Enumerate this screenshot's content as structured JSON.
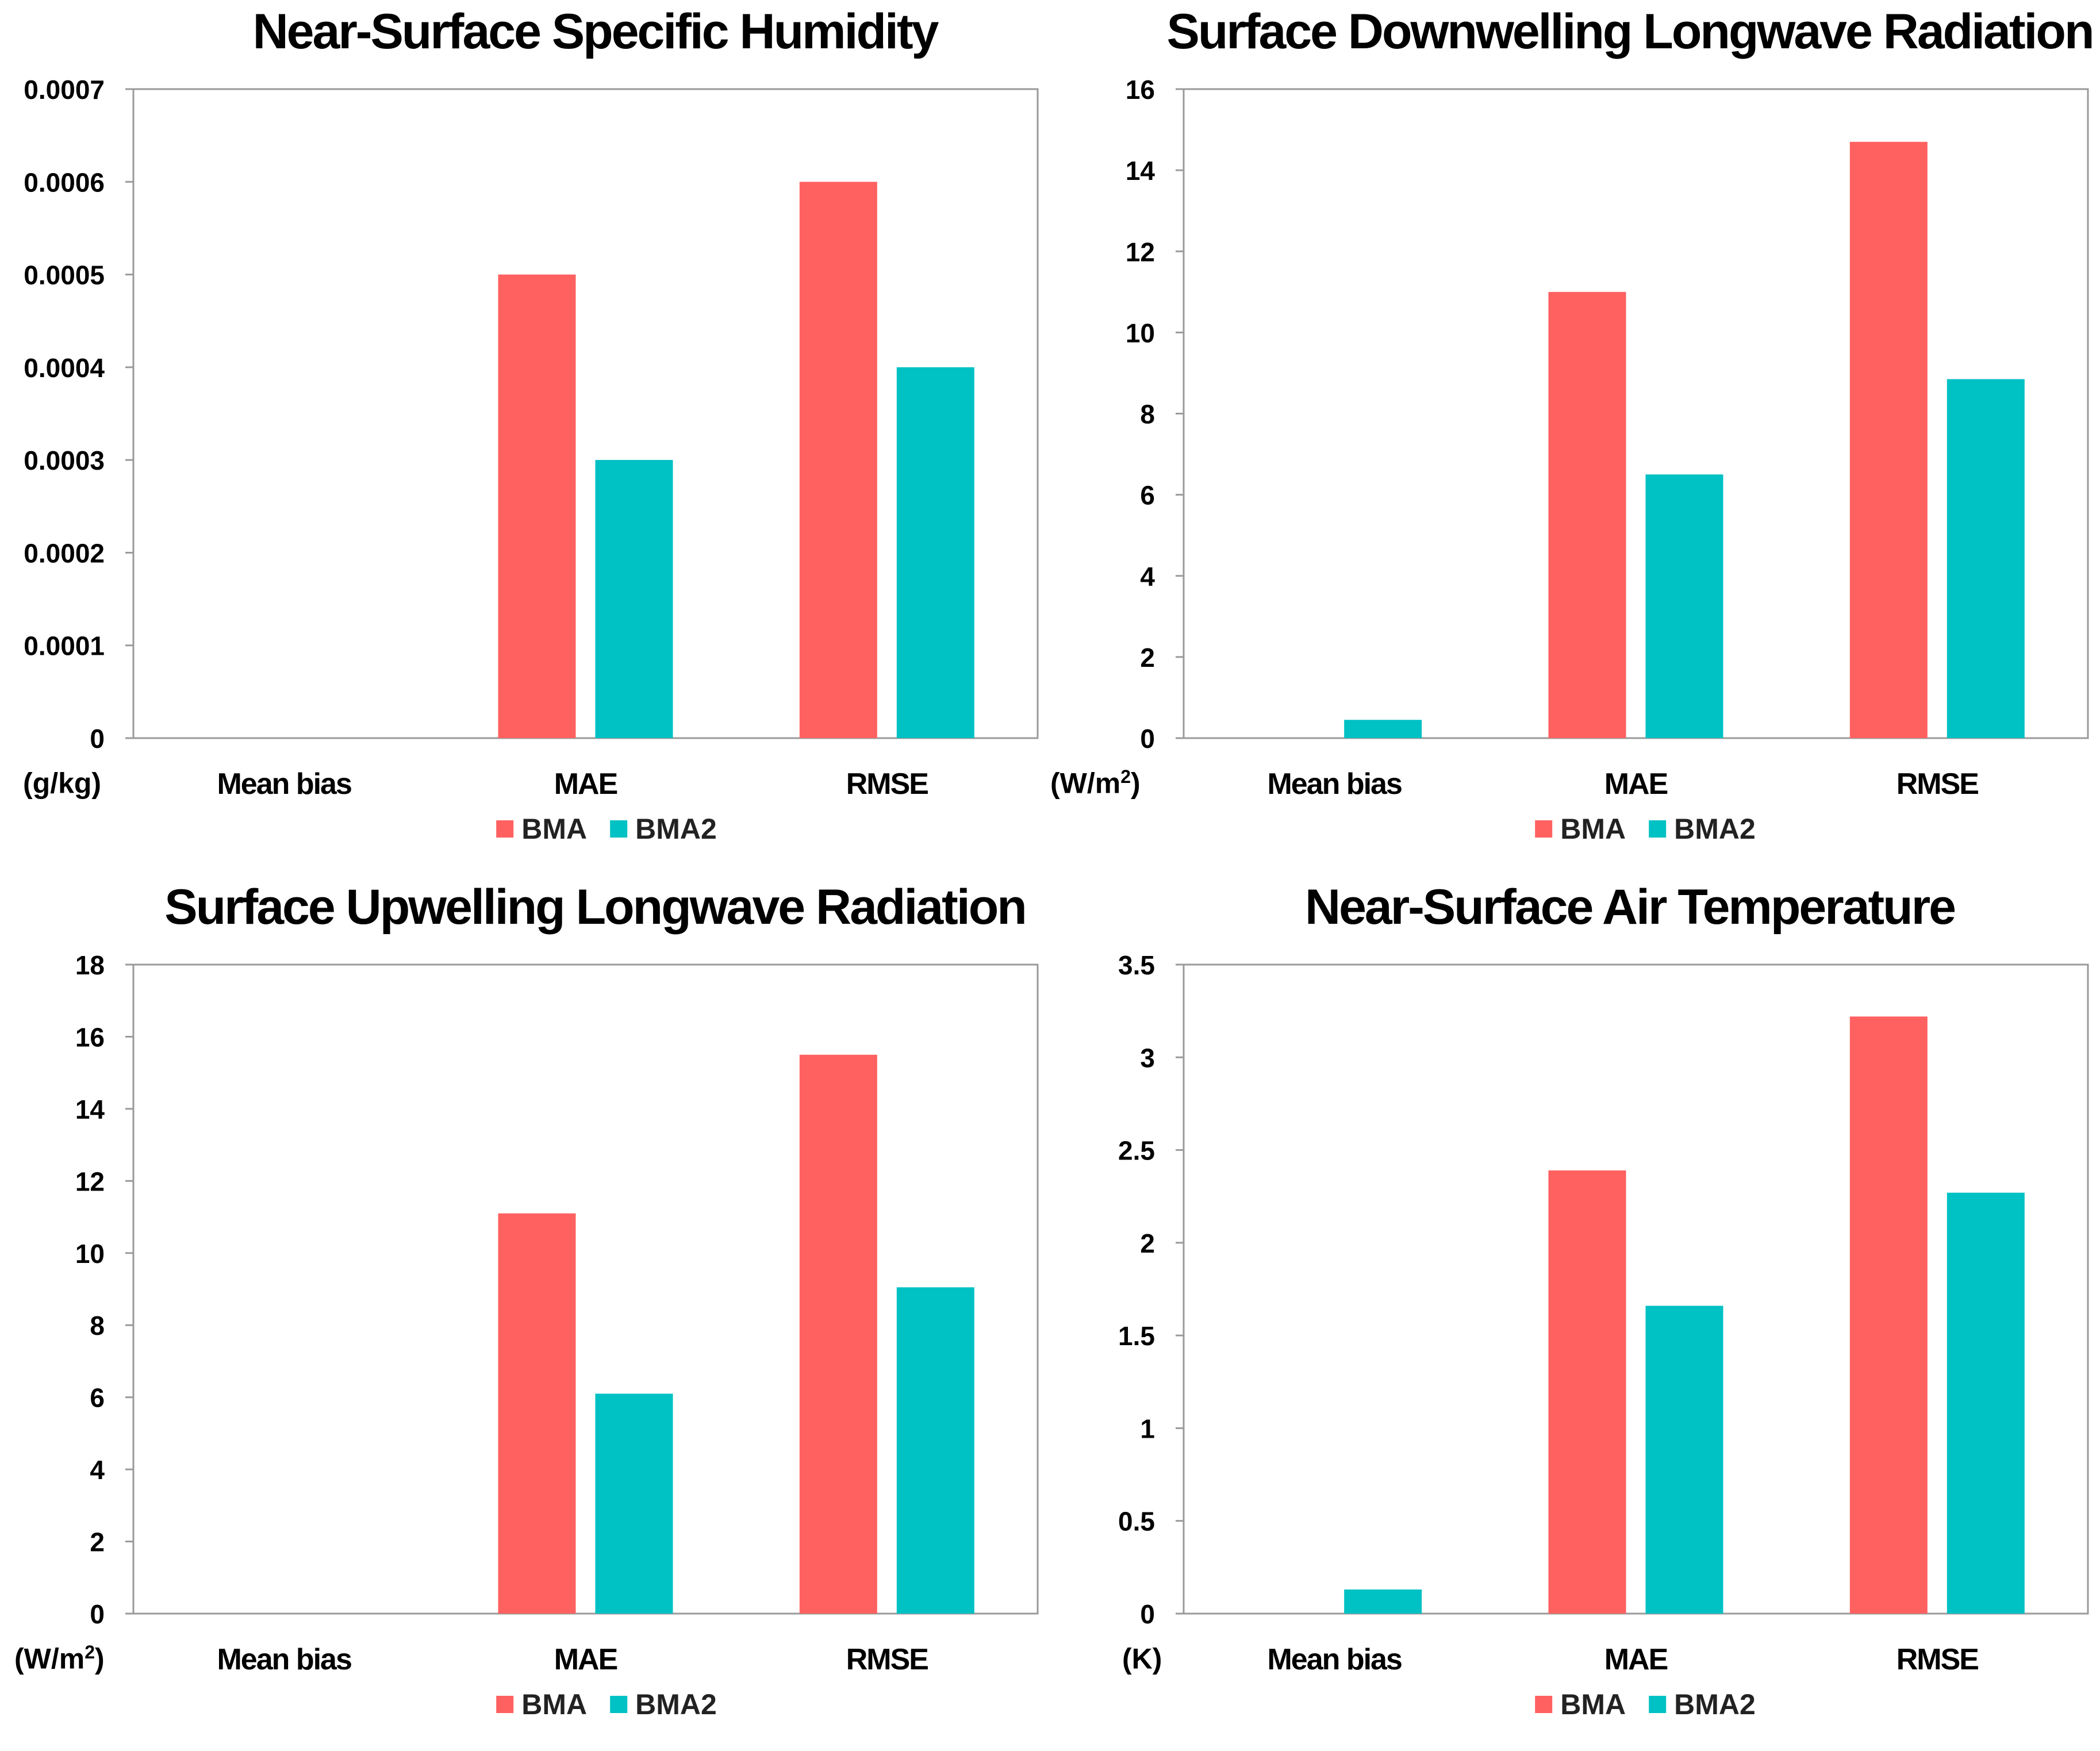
{
  "colors": {
    "bma": "#FF6161",
    "bma2": "#00C1C4",
    "axis": "#9a9a9a",
    "text": "#000000"
  },
  "legend": {
    "series_a": "BMA",
    "series_b": "BMA2"
  },
  "chart_data": [
    {
      "type": "bar",
      "title": "Near-Surface Specific Humidity",
      "unit_label": "(g/kg)",
      "unit_sup": "",
      "unit_close": "",
      "categories": [
        "Mean bias",
        "MAE",
        "RMSE"
      ],
      "series": [
        {
          "name": "BMA",
          "values": [
            0,
            0.0005,
            0.0006
          ]
        },
        {
          "name": "BMA2",
          "values": [
            0,
            0.0003,
            0.0004
          ]
        }
      ],
      "ylim": [
        0,
        0.0007
      ],
      "yticks": [
        0,
        0.0001,
        0.0002,
        0.0003,
        0.0004,
        0.0005,
        0.0006,
        0.0007
      ],
      "ytick_labels": [
        "0",
        "0.0001",
        "0.0002",
        "0.0003",
        "0.0004",
        "0.0005",
        "0.0006",
        "0.0007"
      ]
    },
    {
      "type": "bar",
      "title": "Surface Downwelling Longwave Radiation",
      "unit_label": "(W/m",
      "unit_sup": "2",
      "unit_close": ")",
      "categories": [
        "Mean bias",
        "MAE",
        "RMSE"
      ],
      "series": [
        {
          "name": "BMA",
          "values": [
            0,
            11.0,
            14.7
          ]
        },
        {
          "name": "BMA2",
          "values": [
            0.45,
            6.5,
            8.85
          ]
        }
      ],
      "ylim": [
        0,
        16
      ],
      "yticks": [
        0,
        2,
        4,
        6,
        8,
        10,
        12,
        14,
        16
      ],
      "ytick_labels": [
        "0",
        "2",
        "4",
        "6",
        "8",
        "10",
        "12",
        "14",
        "16"
      ]
    },
    {
      "type": "bar",
      "title": "Surface Upwelling Longwave Radiation",
      "unit_label": "(W/m",
      "unit_sup": "2",
      "unit_close": ")",
      "categories": [
        "Mean bias",
        "MAE",
        "RMSE"
      ],
      "series": [
        {
          "name": "BMA",
          "values": [
            0,
            11.1,
            15.5
          ]
        },
        {
          "name": "BMA2",
          "values": [
            0,
            6.1,
            9.05
          ]
        }
      ],
      "ylim": [
        0,
        18
      ],
      "yticks": [
        0,
        2,
        4,
        6,
        8,
        10,
        12,
        14,
        16,
        18
      ],
      "ytick_labels": [
        "0",
        "2",
        "4",
        "6",
        "8",
        "10",
        "12",
        "14",
        "16",
        "18"
      ]
    },
    {
      "type": "bar",
      "title": "Near-Surface Air Temperature",
      "unit_label": "(K)",
      "unit_sup": "",
      "unit_close": "",
      "categories": [
        "Mean bias",
        "MAE",
        "RMSE"
      ],
      "series": [
        {
          "name": "BMA",
          "values": [
            0,
            2.39,
            3.22
          ]
        },
        {
          "name": "BMA2",
          "values": [
            0.13,
            1.66,
            2.27
          ]
        }
      ],
      "ylim": [
        0,
        3.5
      ],
      "yticks": [
        0,
        0.5,
        1,
        1.5,
        2,
        2.5,
        3,
        3.5
      ],
      "ytick_labels": [
        "0",
        "0.5",
        "1",
        "1.5",
        "2",
        "2.5",
        "3",
        "3.5"
      ]
    }
  ]
}
